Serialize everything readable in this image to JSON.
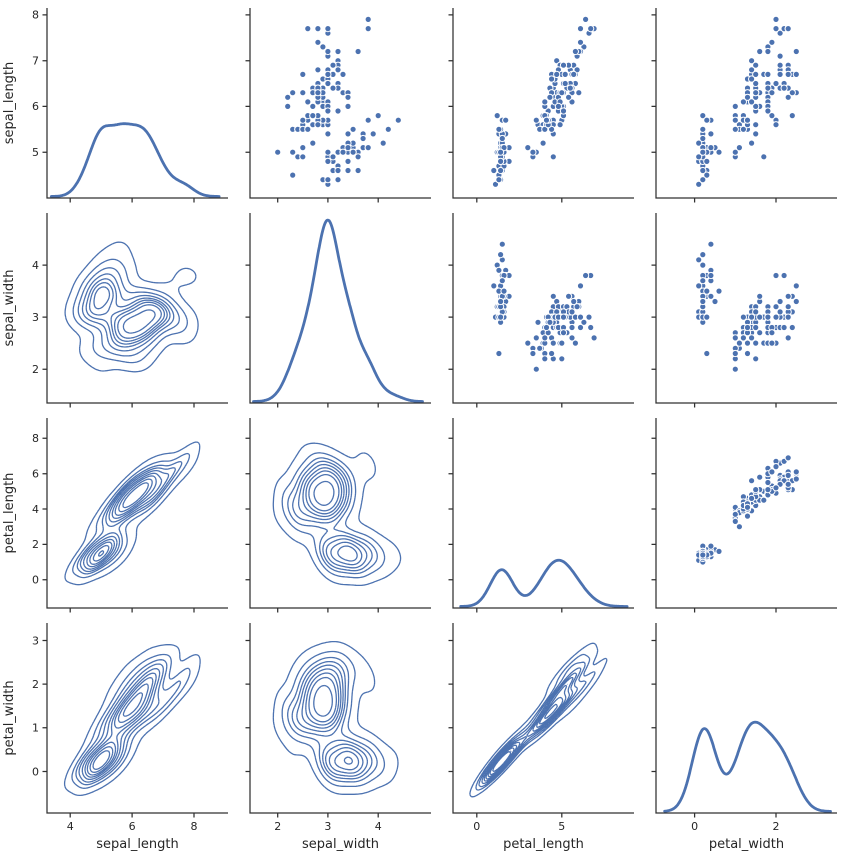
{
  "chart_data": {
    "type": "pairplot",
    "style": "seaborn-ticks-despined",
    "variables": [
      "sepal_length",
      "sepal_width",
      "petal_length",
      "petal_width"
    ],
    "diagonal": "kde",
    "upper_triangle": "scatter",
    "lower_triangle": "kde-contours",
    "n_samples": 150,
    "color": "#4c72b0",
    "marker_edge_color": "#ffffff",
    "axis_color": "#303030",
    "tick_label_color": "#262626",
    "contour_levels": 9,
    "x_limits": [
      [
        3.25,
        9.1
      ],
      [
        1.45,
        5.05
      ],
      [
        -1.4,
        9.25
      ],
      [
        -0.95,
        3.5
      ]
    ],
    "y_limits": [
      [
        4.0,
        8.15
      ],
      [
        1.35,
        5.0
      ],
      [
        -1.6,
        9.15
      ],
      [
        -0.95,
        3.4
      ]
    ],
    "x_ticks": [
      [
        4,
        6,
        8
      ],
      [
        2,
        3,
        4
      ],
      [
        0,
        5
      ],
      [
        0,
        2
      ]
    ],
    "y_ticks": [
      [
        5,
        6,
        7,
        8
      ],
      [
        2,
        3,
        4
      ],
      [
        0,
        2,
        4,
        6,
        8
      ],
      [
        0,
        1,
        2,
        3
      ]
    ],
    "points": [
      [
        5.1,
        3.5,
        1.4,
        0.2
      ],
      [
        4.9,
        3.0,
        1.4,
        0.2
      ],
      [
        4.7,
        3.2,
        1.3,
        0.2
      ],
      [
        4.6,
        3.1,
        1.5,
        0.2
      ],
      [
        5.0,
        3.6,
        1.4,
        0.2
      ],
      [
        5.4,
        3.9,
        1.7,
        0.4
      ],
      [
        4.6,
        3.4,
        1.4,
        0.3
      ],
      [
        5.0,
        3.4,
        1.5,
        0.2
      ],
      [
        4.4,
        2.9,
        1.4,
        0.2
      ],
      [
        4.9,
        3.1,
        1.5,
        0.1
      ],
      [
        5.4,
        3.7,
        1.5,
        0.2
      ],
      [
        4.8,
        3.4,
        1.6,
        0.2
      ],
      [
        4.8,
        3.0,
        1.4,
        0.1
      ],
      [
        4.3,
        3.0,
        1.1,
        0.1
      ],
      [
        5.8,
        4.0,
        1.2,
        0.2
      ],
      [
        5.7,
        4.4,
        1.5,
        0.4
      ],
      [
        5.4,
        3.9,
        1.3,
        0.4
      ],
      [
        5.1,
        3.5,
        1.4,
        0.3
      ],
      [
        5.7,
        3.8,
        1.7,
        0.3
      ],
      [
        5.1,
        3.8,
        1.5,
        0.3
      ],
      [
        5.4,
        3.4,
        1.7,
        0.2
      ],
      [
        5.1,
        3.7,
        1.5,
        0.4
      ],
      [
        4.6,
        3.6,
        1.0,
        0.2
      ],
      [
        5.1,
        3.3,
        1.7,
        0.5
      ],
      [
        4.8,
        3.4,
        1.9,
        0.2
      ],
      [
        5.0,
        3.0,
        1.6,
        0.2
      ],
      [
        5.0,
        3.4,
        1.6,
        0.4
      ],
      [
        5.2,
        3.5,
        1.5,
        0.2
      ],
      [
        5.2,
        3.4,
        1.4,
        0.2
      ],
      [
        4.7,
        3.2,
        1.6,
        0.2
      ],
      [
        4.8,
        3.1,
        1.6,
        0.2
      ],
      [
        5.4,
        3.4,
        1.5,
        0.4
      ],
      [
        5.2,
        4.1,
        1.5,
        0.1
      ],
      [
        5.5,
        4.2,
        1.4,
        0.2
      ],
      [
        4.9,
        3.1,
        1.5,
        0.2
      ],
      [
        5.0,
        3.2,
        1.2,
        0.2
      ],
      [
        5.5,
        3.5,
        1.3,
        0.2
      ],
      [
        4.9,
        3.6,
        1.4,
        0.1
      ],
      [
        4.4,
        3.0,
        1.3,
        0.2
      ],
      [
        5.1,
        3.4,
        1.5,
        0.2
      ],
      [
        5.0,
        3.5,
        1.3,
        0.3
      ],
      [
        4.5,
        2.3,
        1.3,
        0.3
      ],
      [
        4.4,
        3.2,
        1.3,
        0.2
      ],
      [
        5.0,
        3.5,
        1.6,
        0.6
      ],
      [
        5.1,
        3.8,
        1.9,
        0.4
      ],
      [
        4.8,
        3.0,
        1.4,
        0.3
      ],
      [
        5.1,
        3.8,
        1.6,
        0.2
      ],
      [
        4.6,
        3.2,
        1.4,
        0.2
      ],
      [
        5.3,
        3.7,
        1.5,
        0.2
      ],
      [
        5.0,
        3.3,
        1.4,
        0.2
      ],
      [
        7.0,
        3.2,
        4.7,
        1.4
      ],
      [
        6.4,
        3.2,
        4.5,
        1.5
      ],
      [
        6.9,
        3.1,
        4.9,
        1.5
      ],
      [
        5.5,
        2.3,
        4.0,
        1.3
      ],
      [
        6.5,
        2.8,
        4.6,
        1.5
      ],
      [
        5.7,
        2.8,
        4.5,
        1.3
      ],
      [
        6.3,
        3.3,
        4.7,
        1.6
      ],
      [
        4.9,
        2.4,
        3.3,
        1.0
      ],
      [
        6.6,
        2.9,
        4.6,
        1.3
      ],
      [
        5.2,
        2.7,
        3.9,
        1.4
      ],
      [
        5.0,
        2.0,
        3.5,
        1.0
      ],
      [
        5.9,
        3.0,
        4.2,
        1.5
      ],
      [
        6.0,
        2.2,
        4.0,
        1.0
      ],
      [
        6.1,
        2.9,
        4.7,
        1.4
      ],
      [
        5.6,
        2.9,
        3.6,
        1.3
      ],
      [
        6.7,
        3.1,
        4.4,
        1.4
      ],
      [
        5.6,
        3.0,
        4.5,
        1.5
      ],
      [
        5.8,
        2.7,
        4.1,
        1.0
      ],
      [
        6.2,
        2.2,
        4.5,
        1.5
      ],
      [
        5.6,
        2.5,
        3.9,
        1.1
      ],
      [
        5.9,
        3.2,
        4.8,
        1.8
      ],
      [
        6.1,
        2.8,
        4.0,
        1.3
      ],
      [
        6.3,
        2.5,
        4.9,
        1.5
      ],
      [
        6.1,
        2.8,
        4.7,
        1.2
      ],
      [
        6.4,
        2.9,
        4.3,
        1.3
      ],
      [
        6.6,
        3.0,
        4.4,
        1.4
      ],
      [
        6.8,
        2.8,
        4.8,
        1.4
      ],
      [
        6.7,
        3.0,
        5.0,
        1.7
      ],
      [
        6.0,
        2.9,
        4.5,
        1.5
      ],
      [
        5.7,
        2.6,
        3.5,
        1.0
      ],
      [
        5.5,
        2.4,
        3.8,
        1.1
      ],
      [
        5.5,
        2.4,
        3.7,
        1.0
      ],
      [
        5.8,
        2.7,
        3.9,
        1.2
      ],
      [
        6.0,
        2.7,
        5.1,
        1.6
      ],
      [
        5.4,
        3.0,
        4.5,
        1.5
      ],
      [
        6.0,
        3.4,
        4.5,
        1.6
      ],
      [
        6.7,
        3.1,
        4.7,
        1.5
      ],
      [
        6.3,
        2.3,
        4.4,
        1.3
      ],
      [
        5.6,
        3.0,
        4.1,
        1.3
      ],
      [
        5.5,
        2.5,
        4.0,
        1.3
      ],
      [
        5.5,
        2.6,
        4.4,
        1.2
      ],
      [
        6.1,
        3.0,
        4.6,
        1.4
      ],
      [
        5.8,
        2.6,
        4.0,
        1.2
      ],
      [
        5.0,
        2.3,
        3.3,
        1.0
      ],
      [
        5.6,
        2.7,
        4.2,
        1.3
      ],
      [
        5.7,
        3.0,
        4.2,
        1.2
      ],
      [
        5.7,
        2.9,
        4.2,
        1.3
      ],
      [
        6.2,
        2.9,
        4.3,
        1.3
      ],
      [
        5.1,
        2.5,
        3.0,
        1.1
      ],
      [
        5.7,
        2.8,
        4.1,
        1.3
      ],
      [
        6.3,
        3.3,
        6.0,
        2.5
      ],
      [
        5.8,
        2.7,
        5.1,
        1.9
      ],
      [
        7.1,
        3.0,
        5.9,
        2.1
      ],
      [
        6.3,
        2.9,
        5.6,
        1.8
      ],
      [
        6.5,
        3.0,
        5.8,
        2.2
      ],
      [
        7.6,
        3.0,
        6.6,
        2.1
      ],
      [
        4.9,
        2.5,
        4.5,
        1.7
      ],
      [
        7.3,
        2.9,
        6.3,
        1.8
      ],
      [
        6.7,
        2.5,
        5.8,
        1.8
      ],
      [
        7.2,
        3.6,
        6.1,
        2.5
      ],
      [
        6.5,
        3.2,
        5.1,
        2.0
      ],
      [
        6.4,
        2.7,
        5.3,
        1.9
      ],
      [
        6.8,
        3.0,
        5.5,
        2.1
      ],
      [
        5.7,
        2.5,
        5.0,
        2.0
      ],
      [
        5.8,
        2.8,
        5.1,
        2.4
      ],
      [
        6.4,
        3.2,
        5.3,
        2.3
      ],
      [
        6.5,
        3.0,
        5.5,
        1.8
      ],
      [
        7.7,
        3.8,
        6.7,
        2.2
      ],
      [
        7.7,
        2.6,
        6.9,
        2.3
      ],
      [
        6.0,
        2.2,
        5.0,
        1.5
      ],
      [
        6.9,
        3.2,
        5.7,
        2.3
      ],
      [
        5.6,
        2.8,
        4.9,
        2.0
      ],
      [
        7.7,
        2.8,
        6.7,
        2.0
      ],
      [
        6.3,
        2.7,
        4.9,
        1.8
      ],
      [
        6.7,
        3.3,
        5.7,
        2.1
      ],
      [
        7.2,
        3.2,
        6.0,
        1.8
      ],
      [
        6.2,
        2.8,
        4.8,
        1.8
      ],
      [
        6.1,
        3.0,
        4.9,
        1.8
      ],
      [
        6.4,
        2.8,
        5.6,
        2.1
      ],
      [
        7.2,
        3.0,
        5.8,
        1.6
      ],
      [
        7.4,
        2.8,
        6.1,
        1.9
      ],
      [
        7.9,
        3.8,
        6.4,
        2.0
      ],
      [
        6.4,
        2.8,
        5.6,
        2.2
      ],
      [
        6.3,
        2.8,
        5.1,
        1.5
      ],
      [
        6.1,
        2.6,
        5.6,
        1.4
      ],
      [
        7.7,
        3.0,
        6.1,
        2.3
      ],
      [
        6.3,
        3.4,
        5.6,
        2.4
      ],
      [
        6.4,
        3.1,
        5.5,
        1.8
      ],
      [
        6.0,
        3.0,
        4.8,
        1.8
      ],
      [
        6.9,
        3.1,
        5.4,
        2.1
      ],
      [
        6.7,
        3.1,
        5.6,
        2.4
      ],
      [
        6.9,
        3.1,
        5.1,
        2.3
      ],
      [
        5.8,
        2.7,
        5.1,
        1.9
      ],
      [
        6.8,
        3.2,
        5.9,
        2.3
      ],
      [
        6.7,
        3.3,
        5.7,
        2.5
      ],
      [
        6.7,
        3.0,
        5.2,
        2.3
      ],
      [
        6.3,
        2.5,
        5.0,
        1.9
      ],
      [
        6.5,
        3.0,
        5.2,
        2.0
      ],
      [
        6.2,
        3.4,
        5.4,
        2.3
      ],
      [
        5.9,
        3.0,
        5.1,
        1.8
      ]
    ]
  }
}
